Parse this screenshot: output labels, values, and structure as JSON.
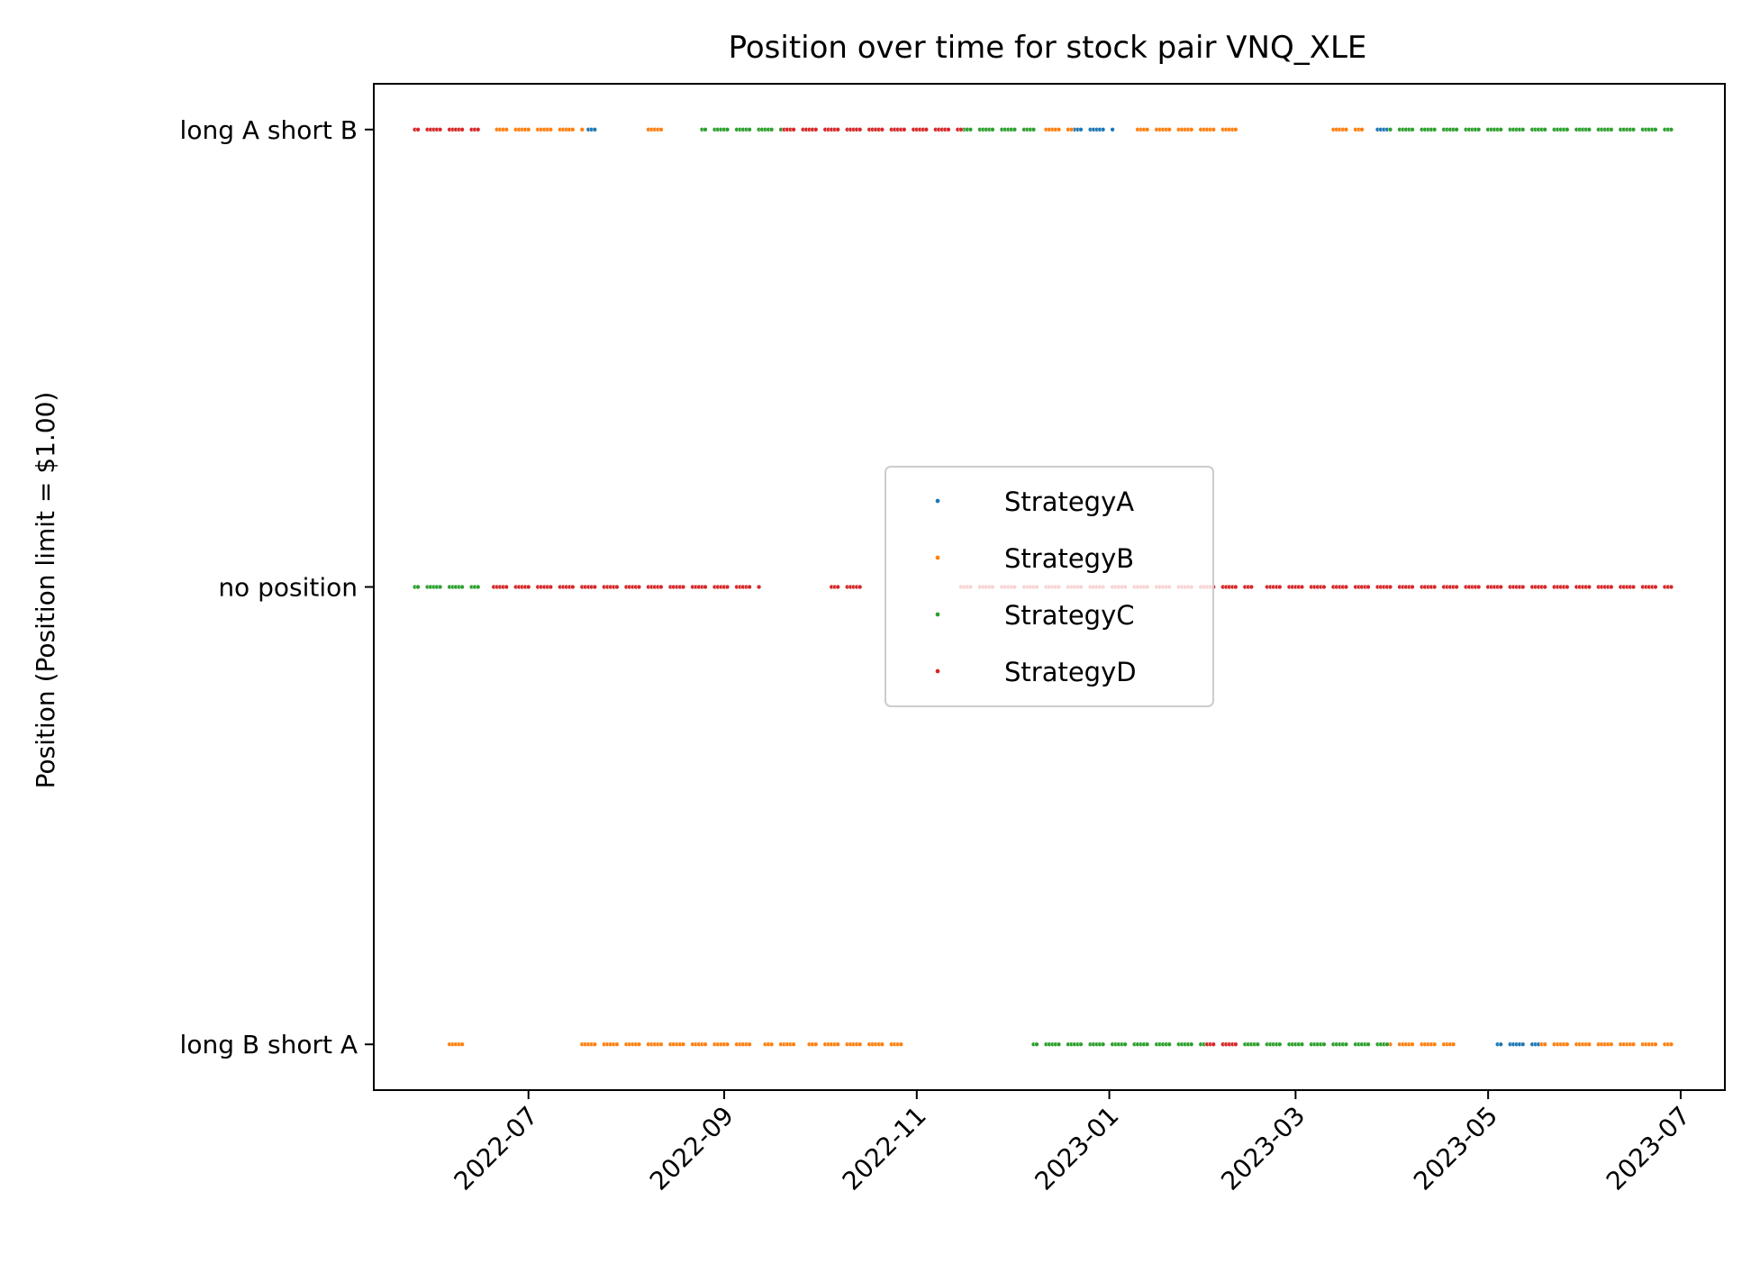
{
  "chart_data": {
    "type": "scatter",
    "title": "Position over time for stock pair VNQ_XLE",
    "xlabel": "",
    "ylabel": "Position (Position limit = $1.00)",
    "x_ticks": [
      "2022-07",
      "2022-09",
      "2022-11",
      "2023-01",
      "2023-03",
      "2023-05",
      "2023-07"
    ],
    "y_ticks": [
      {
        "value": -1,
        "label": "long B short A"
      },
      {
        "value": 0,
        "label": "no position"
      },
      {
        "value": 1,
        "label": "long A short B"
      }
    ],
    "xlim": [
      "2022-05-13",
      "2023-07-15"
    ],
    "ylim": [
      -1.1,
      1.1
    ],
    "grid": false,
    "legend": {
      "position": "center"
    },
    "series": [
      {
        "name": "StrategyA",
        "color": "#1f77b4",
        "segments": [
          {
            "y": 1,
            "start": "2022-07-20",
            "end": "2022-07-22"
          },
          {
            "y": 1,
            "start": "2022-12-18",
            "end": "2022-12-30"
          },
          {
            "y": 1,
            "start": "2023-01-02",
            "end": "2023-01-02"
          },
          {
            "y": 1,
            "start": "2023-03-27",
            "end": "2023-03-31"
          },
          {
            "y": -1,
            "start": "2022-08-08",
            "end": "2022-08-12"
          },
          {
            "y": -1,
            "start": "2023-05-04",
            "end": "2023-05-17"
          },
          {
            "y": -1,
            "start": "2023-06-04",
            "end": "2023-06-07"
          },
          {
            "y": -1,
            "start": "2023-06-17",
            "end": "2023-06-24"
          }
        ]
      },
      {
        "name": "StrategyB",
        "color": "#ff7f0e",
        "segments": [
          {
            "y": 1,
            "start": "2022-06-21",
            "end": "2022-07-18"
          },
          {
            "y": 1,
            "start": "2022-08-08",
            "end": "2022-08-12"
          },
          {
            "y": 1,
            "start": "2022-12-10",
            "end": "2022-12-20"
          },
          {
            "y": 1,
            "start": "2023-01-10",
            "end": "2023-01-20"
          },
          {
            "y": 1,
            "start": "2023-01-23",
            "end": "2023-02-12"
          },
          {
            "y": 1,
            "start": "2023-03-12",
            "end": "2023-03-22"
          },
          {
            "y": -1,
            "start": "2022-06-04",
            "end": "2022-06-12"
          },
          {
            "y": -1,
            "start": "2022-07-18",
            "end": "2022-09-10"
          },
          {
            "y": -1,
            "start": "2022-09-14",
            "end": "2022-09-24"
          },
          {
            "y": -1,
            "start": "2022-09-28",
            "end": "2022-10-27"
          },
          {
            "y": -1,
            "start": "2023-03-30",
            "end": "2023-04-20"
          },
          {
            "y": -1,
            "start": "2023-05-18",
            "end": "2023-06-28"
          }
        ]
      },
      {
        "name": "StrategyC",
        "color": "#2ca02c",
        "segments": [
          {
            "y": 1,
            "start": "2022-08-25",
            "end": "2022-12-08"
          },
          {
            "y": 1,
            "start": "2023-03-31",
            "end": "2023-06-28"
          },
          {
            "y": 0,
            "start": "2022-05-26",
            "end": "2022-06-15"
          },
          {
            "y": -1,
            "start": "2022-12-08",
            "end": "2023-03-30"
          }
        ]
      },
      {
        "name": "StrategyD",
        "color": "#d62728",
        "segments": [
          {
            "y": 1,
            "start": "2022-05-26",
            "end": "2022-06-15"
          },
          {
            "y": 1,
            "start": "2022-09-20",
            "end": "2022-11-15"
          },
          {
            "y": 0,
            "start": "2022-06-18",
            "end": "2022-09-12"
          },
          {
            "y": 0,
            "start": "2022-10-05",
            "end": "2022-10-14"
          },
          {
            "y": 0,
            "start": "2022-11-15",
            "end": "2023-02-15"
          },
          {
            "y": 0,
            "start": "2023-02-18",
            "end": "2023-06-28"
          },
          {
            "y": -1,
            "start": "2023-02-01",
            "end": "2023-02-11"
          }
        ]
      }
    ]
  }
}
